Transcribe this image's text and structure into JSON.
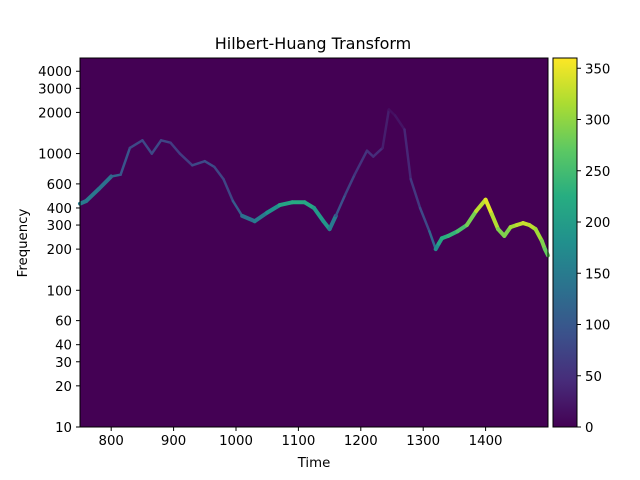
{
  "chart_data": {
    "type": "heatmap",
    "title": "Hilbert-Huang Transform",
    "xlabel": "Time",
    "ylabel": "Frequency",
    "xlim": [
      750,
      1500
    ],
    "ylim": [
      10,
      5000
    ],
    "yscale": "log",
    "x_ticks": [
      800,
      900,
      1000,
      1100,
      1200,
      1300,
      1400
    ],
    "y_ticks": [
      10,
      20,
      30,
      40,
      60,
      100,
      200,
      300,
      400,
      600,
      1000,
      2000,
      3000,
      4000
    ],
    "y_tick_labels": [
      "10",
      "20",
      "30",
      "40",
      "60",
      "100",
      "200",
      "300",
      "400",
      "600",
      "1000",
      "2000",
      "3000",
      "4000"
    ],
    "colorbar": {
      "colormap": "viridis",
      "range": [
        0,
        360
      ],
      "ticks": [
        0,
        50,
        100,
        150,
        200,
        250,
        300,
        350
      ],
      "tick_labels": [
        "0",
        "50",
        "100",
        "150",
        "200",
        "250",
        "300",
        "350"
      ]
    },
    "background_color": "#440154",
    "instantaneous_frequency": {
      "time": [
        750,
        760,
        780,
        800,
        815,
        830,
        850,
        865,
        880,
        895,
        910,
        930,
        950,
        965,
        980,
        995,
        1010,
        1030,
        1050,
        1070,
        1090,
        1110,
        1125,
        1140,
        1150,
        1160,
        1175,
        1190,
        1210,
        1220,
        1235,
        1245,
        1255,
        1270,
        1280,
        1295,
        1310,
        1320,
        1325,
        1330,
        1340,
        1355,
        1370,
        1385,
        1400,
        1410,
        1420,
        1430,
        1440,
        1450,
        1460,
        1470,
        1480,
        1490,
        1495,
        1500
      ],
      "frequency": [
        430,
        450,
        550,
        680,
        700,
        1100,
        1250,
        1000,
        1250,
        1200,
        1000,
        820,
        880,
        800,
        650,
        450,
        350,
        320,
        370,
        420,
        440,
        440,
        400,
        320,
        280,
        350,
        500,
        700,
        1050,
        950,
        1100,
        2100,
        1900,
        1500,
        650,
        400,
        270,
        200,
        220,
        240,
        250,
        270,
        300,
        380,
        460,
        360,
        280,
        250,
        290,
        300,
        310,
        300,
        280,
        230,
        200,
        180
      ],
      "amplitude": [
        150,
        150,
        140,
        130,
        110,
        80,
        80,
        80,
        80,
        70,
        60,
        70,
        90,
        80,
        70,
        80,
        130,
        140,
        160,
        200,
        220,
        220,
        210,
        180,
        200,
        100,
        80,
        60,
        50,
        50,
        40,
        20,
        10,
        30,
        50,
        70,
        90,
        150,
        200,
        220,
        230,
        240,
        270,
        300,
        350,
        340,
        300,
        280,
        300,
        320,
        330,
        330,
        320,
        300,
        280,
        270
      ]
    }
  }
}
